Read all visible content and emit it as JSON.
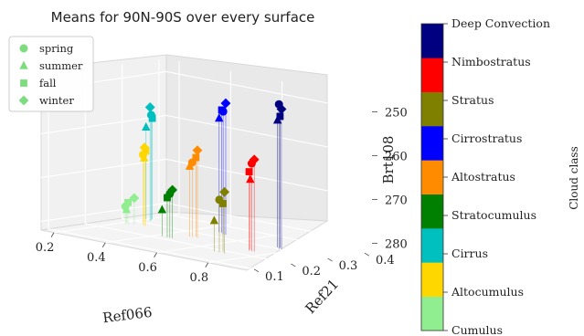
{
  "chart_data": {
    "type": "scatter",
    "title": "Means for 90N-90S over every surface",
    "xlabel": "Ref066",
    "ylabel": "Ref21",
    "zlabel": "Brt108",
    "xlim": [
      0.15,
      0.95
    ],
    "ylim": [
      0.08,
      0.42
    ],
    "zlim": [
      282,
      247
    ],
    "x_ticks": [
      0.2,
      0.4,
      0.6,
      0.8
    ],
    "x_tick_labels": [
      "0.2",
      "0.4",
      "0.6",
      "0.8"
    ],
    "y_ticks": [
      0.1,
      0.2,
      0.3,
      0.4
    ],
    "y_tick_labels": [
      "0.1",
      "0.2",
      "0.3",
      "0.4"
    ],
    "z_ticks": [
      250,
      260,
      270,
      280
    ],
    "z_tick_labels": [
      "250",
      "260",
      "270",
      "280"
    ],
    "grid": true,
    "legend_position": "top-left",
    "legend": [
      {
        "label": "spring",
        "marker": "circle"
      },
      {
        "label": "summer",
        "marker": "triangle"
      },
      {
        "label": "fall",
        "marker": "square"
      },
      {
        "label": "winter",
        "marker": "diamond"
      }
    ],
    "colorbar": {
      "label": "Cloud class",
      "position": "right",
      "classes": [
        {
          "name": "Cumulus",
          "color": "#90ee90"
        },
        {
          "name": "Altocumulus",
          "color": "#ffd700"
        },
        {
          "name": "Cirrus",
          "color": "#00bfbf"
        },
        {
          "name": "Stratocumulus",
          "color": "#008000"
        },
        {
          "name": "Altostratus",
          "color": "#ff8c00"
        },
        {
          "name": "Cirrostratus",
          "color": "#0000ff"
        },
        {
          "name": "Stratus",
          "color": "#808000"
        },
        {
          "name": "Nimbostratus",
          "color": "#ff0000"
        },
        {
          "name": "Deep Convection",
          "color": "#000080"
        }
      ]
    },
    "points": [
      {
        "cls": "Cumulus",
        "season": "spring",
        "x": 0.22,
        "y": 0.26,
        "z": 278
      },
      {
        "cls": "Cumulus",
        "season": "summer",
        "x": 0.21,
        "y": 0.27,
        "z": 279
      },
      {
        "cls": "Cumulus",
        "season": "fall",
        "x": 0.23,
        "y": 0.26,
        "z": 277
      },
      {
        "cls": "Cumulus",
        "season": "winter",
        "x": 0.24,
        "y": 0.27,
        "z": 276
      },
      {
        "cls": "Altocumulus",
        "season": "spring",
        "x": 0.26,
        "y": 0.28,
        "z": 266
      },
      {
        "cls": "Altocumulus",
        "season": "summer",
        "x": 0.25,
        "y": 0.29,
        "z": 267
      },
      {
        "cls": "Altocumulus",
        "season": "fall",
        "x": 0.27,
        "y": 0.28,
        "z": 265
      },
      {
        "cls": "Altocumulus",
        "season": "winter",
        "x": 0.28,
        "y": 0.27,
        "z": 264
      },
      {
        "cls": "Cirrus",
        "season": "spring",
        "x": 0.22,
        "y": 0.33,
        "z": 258
      },
      {
        "cls": "Cirrus",
        "season": "summer",
        "x": 0.2,
        "y": 0.33,
        "z": 261
      },
      {
        "cls": "Cirrus",
        "season": "fall",
        "x": 0.21,
        "y": 0.34,
        "z": 259
      },
      {
        "cls": "Cirrus",
        "season": "winter",
        "x": 0.23,
        "y": 0.32,
        "z": 256
      },
      {
        "cls": "Stratocumulus",
        "season": "spring",
        "x": 0.45,
        "y": 0.22,
        "z": 272
      },
      {
        "cls": "Stratocumulus",
        "season": "summer",
        "x": 0.42,
        "y": 0.22,
        "z": 276
      },
      {
        "cls": "Stratocumulus",
        "season": "fall",
        "x": 0.44,
        "y": 0.22,
        "z": 273
      },
      {
        "cls": "Stratocumulus",
        "season": "winter",
        "x": 0.46,
        "y": 0.22,
        "z": 271
      },
      {
        "cls": "Altostratus",
        "season": "spring",
        "x": 0.48,
        "y": 0.26,
        "z": 265
      },
      {
        "cls": "Altostratus",
        "season": "summer",
        "x": 0.47,
        "y": 0.26,
        "z": 266
      },
      {
        "cls": "Altostratus",
        "season": "fall",
        "x": 0.48,
        "y": 0.27,
        "z": 264
      },
      {
        "cls": "Altostratus",
        "season": "winter",
        "x": 0.5,
        "y": 0.26,
        "z": 262
      },
      {
        "cls": "Cirrostratus",
        "season": "spring",
        "x": 0.5,
        "y": 0.33,
        "z": 254
      },
      {
        "cls": "Cirrostratus",
        "season": "summer",
        "x": 0.47,
        "y": 0.34,
        "z": 256
      },
      {
        "cls": "Cirrostratus",
        "season": "fall",
        "x": 0.48,
        "y": 0.34,
        "z": 254
      },
      {
        "cls": "Cirrostratus",
        "season": "winter",
        "x": 0.51,
        "y": 0.33,
        "z": 252
      },
      {
        "cls": "Stratus",
        "season": "spring",
        "x": 0.7,
        "y": 0.18,
        "z": 270
      },
      {
        "cls": "Stratus",
        "season": "summer",
        "x": 0.68,
        "y": 0.18,
        "z": 275
      },
      {
        "cls": "Stratus",
        "season": "fall",
        "x": 0.7,
        "y": 0.19,
        "z": 271
      },
      {
        "cls": "Stratus",
        "season": "winter",
        "x": 0.72,
        "y": 0.18,
        "z": 268
      },
      {
        "cls": "Nimbostratus",
        "season": "spring",
        "x": 0.74,
        "y": 0.24,
        "z": 262
      },
      {
        "cls": "Nimbostratus",
        "season": "summer",
        "x": 0.72,
        "y": 0.25,
        "z": 266
      },
      {
        "cls": "Nimbostratus",
        "season": "fall",
        "x": 0.73,
        "y": 0.24,
        "z": 264
      },
      {
        "cls": "Nimbostratus",
        "season": "winter",
        "x": 0.75,
        "y": 0.24,
        "z": 261
      },
      {
        "cls": "Deep Convection",
        "season": "spring",
        "x": 0.76,
        "y": 0.3,
        "z": 249
      },
      {
        "cls": "Deep Convection",
        "season": "summer",
        "x": 0.74,
        "y": 0.31,
        "z": 253
      },
      {
        "cls": "Deep Convection",
        "season": "fall",
        "x": 0.75,
        "y": 0.31,
        "z": 252
      },
      {
        "cls": "Deep Convection",
        "season": "winter",
        "x": 0.77,
        "y": 0.3,
        "z": 250
      }
    ]
  }
}
